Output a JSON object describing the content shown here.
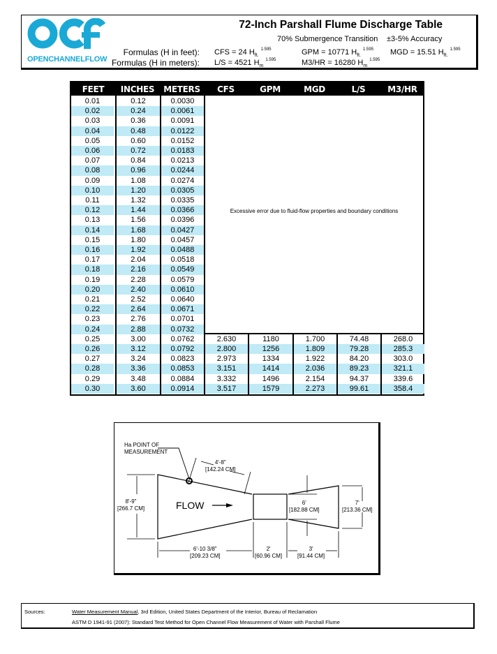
{
  "header": {
    "logo_text": "OPENCHANNELFLOW",
    "title": "72-Inch Parshall Flume Discharge Table",
    "submergence": "70% Submergence Transition",
    "accuracy": "±3-5% Accuracy",
    "formulas_feet_label": "Formulas (H in feet):",
    "formulas_meters_label": "Formulas (H in meters):",
    "cfs_formula": "CFS = 24 H",
    "gpm_formula": "GPM = 10771 H",
    "mgd_formula": "MGD = 15.51 H",
    "ls_formula": "L/S = 4521 H",
    "m3hr_formula": "M3/HR = 16280 H",
    "sub_ft": "ft.",
    "sub_m": "m",
    "exp_cfs": "1.595",
    "exp_gpm": "1.595",
    "exp_mgd": "1.595",
    "exp_ls": "1.595",
    "exp_m3hr": "1.595",
    "brand_color": "#1aa9d6"
  },
  "table": {
    "columns": [
      "FEET",
      "INCHES",
      "METERS",
      "CFS",
      "GPM",
      "MGD",
      "L/S",
      "M3/HR"
    ],
    "excluded_message": "Excessive error due to fluid-flow properties and boundary conditions",
    "row_alt_color": "#bfeaf6",
    "rows": [
      [
        "0.01",
        "0.12",
        "0.0030"
      ],
      [
        "0.02",
        "0.24",
        "0.0061"
      ],
      [
        "0.03",
        "0.36",
        "0.0091"
      ],
      [
        "0.04",
        "0.48",
        "0.0122"
      ],
      [
        "0.05",
        "0.60",
        "0.0152"
      ],
      [
        "0.06",
        "0.72",
        "0.0183"
      ],
      [
        "0.07",
        "0.84",
        "0.0213"
      ],
      [
        "0.08",
        "0.96",
        "0.0244"
      ],
      [
        "0.09",
        "1.08",
        "0.0274"
      ],
      [
        "0.10",
        "1.20",
        "0.0305"
      ],
      [
        "0.11",
        "1.32",
        "0.0335"
      ],
      [
        "0.12",
        "1.44",
        "0.0366"
      ],
      [
        "0.13",
        "1.56",
        "0.0396"
      ],
      [
        "0.14",
        "1.68",
        "0.0427"
      ],
      [
        "0.15",
        "1.80",
        "0.0457"
      ],
      [
        "0.16",
        "1.92",
        "0.0488"
      ],
      [
        "0.17",
        "2.04",
        "0.0518"
      ],
      [
        "0.18",
        "2.16",
        "0.0549"
      ],
      [
        "0.19",
        "2.28",
        "0.0579"
      ],
      [
        "0.20",
        "2.40",
        "0.0610"
      ],
      [
        "0.21",
        "2.52",
        "0.0640"
      ],
      [
        "0.22",
        "2.64",
        "0.0671"
      ],
      [
        "0.23",
        "2.76",
        "0.0701"
      ],
      [
        "0.24",
        "2.88",
        "0.0732"
      ],
      [
        "0.25",
        "3.00",
        "0.0762",
        "2.630",
        "1180",
        "1.700",
        "74.48",
        "268.0"
      ],
      [
        "0.26",
        "3.12",
        "0.0792",
        "2.800",
        "1256",
        "1.809",
        "79.28",
        "285.3"
      ],
      [
        "0.27",
        "3.24",
        "0.0823",
        "2.973",
        "1334",
        "1.922",
        "84.20",
        "303.0"
      ],
      [
        "0.28",
        "3.36",
        "0.0853",
        "3.151",
        "1414",
        "2.036",
        "89.23",
        "321.1"
      ],
      [
        "0.29",
        "3.48",
        "0.0884",
        "3.332",
        "1496",
        "2.154",
        "94.37",
        "339.6"
      ],
      [
        "0.30",
        "3.60",
        "0.0914",
        "3.517",
        "1579",
        "2.273",
        "99.61",
        "358.4"
      ]
    ]
  },
  "diagram": {
    "point_label_1": "Ha POINT OF",
    "point_label_2": "MEASUREMENT",
    "dim_a_ft": "4'-8\"",
    "dim_a_cm": "[142.24 CM]",
    "dim_width_in_ft": "8'-9\"",
    "dim_width_in_cm": "[266.7 CM]",
    "flow": "FLOW",
    "dim_throat_w_ft": "6'",
    "dim_throat_w_cm": "[182.88 CM]",
    "dim_width_out_ft": "7'",
    "dim_width_out_cm": "[213.36 CM]",
    "dim_conv_len_ft": "6'-10 3/8\"",
    "dim_conv_len_cm": "[209.23 CM]",
    "dim_throat_len_ft": "2'",
    "dim_throat_len_cm": "[60.96 CM]",
    "dim_div_len_ft": "3'",
    "dim_div_len_cm": "[91.44 CM]"
  },
  "sources": {
    "label": "Sources:",
    "source1_title": "Water Measurement Manual",
    "source1_rest": ", 3rd Edition, United States Department of the Interior, Bureau of Reclamation",
    "source2": "ASTM D 1941-91 (2007):  Standard Test Method for Open Channel Flow Measurement of Water with Parshall Flume"
  }
}
